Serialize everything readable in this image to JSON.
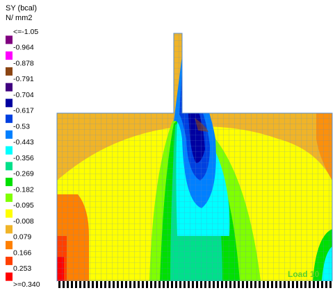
{
  "legend": {
    "title": "SY (bcal)",
    "unit": "N/ mm2",
    "labels": [
      "<=-1.05",
      "-0.964",
      "-0.878",
      "-0.791",
      "-0.704",
      "-0.617",
      "-0.53",
      "-0.443",
      "-0.356",
      "-0.269",
      "-0.182",
      "-0.095",
      "-0.008",
      "0.079",
      "0.166",
      "0.253",
      ">=0.340"
    ],
    "colors": [
      "#800080",
      "#ff00ff",
      "#8b4513",
      "#400080",
      "#0000a0",
      "#0040e0",
      "#0080ff",
      "#00ffff",
      "#00e08a",
      "#00e000",
      "#80ff00",
      "#ffff00",
      "#f0b428",
      "#ff8000",
      "#ff4000",
      "#ff0000"
    ]
  },
  "annotation": "Load 10"
}
